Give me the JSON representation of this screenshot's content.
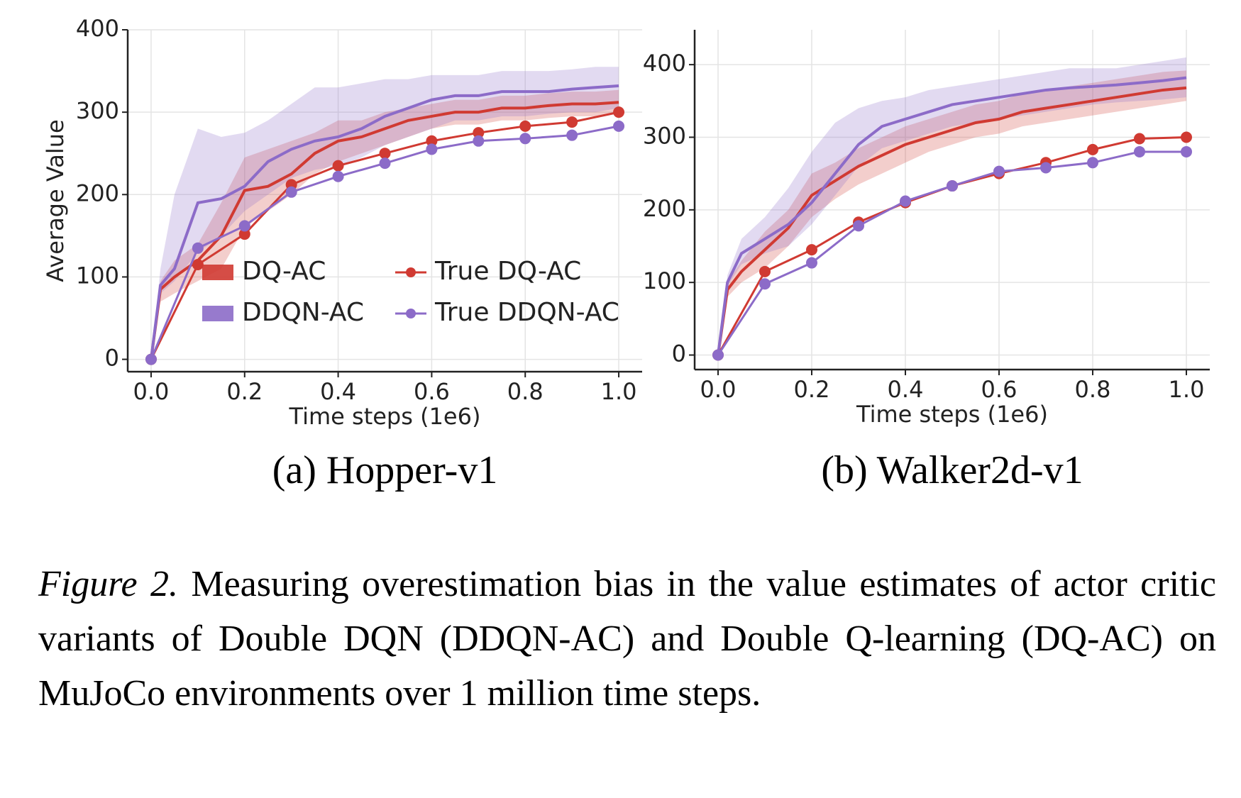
{
  "chart_data": [
    {
      "type": "line",
      "title": "(a) Hopper-v1",
      "xlabel": "Time steps (1e6)",
      "ylabel": "Average Value",
      "xlim": [
        -0.05,
        1.05
      ],
      "xticks": [
        {
          "value": 0,
          "label": "0.0"
        },
        0.2,
        0.4,
        0.6,
        0.8,
        {
          "value": 1,
          "label": "1.0"
        }
      ],
      "ylim": [
        -15,
        400
      ],
      "yticks": [
        0,
        100,
        200,
        300,
        400
      ],
      "grid": true,
      "legend": "lower right",
      "series": [
        {
          "name": "DQ-AC",
          "color": "#d03a32",
          "x": [
            0,
            0.02,
            0.05,
            0.1,
            0.15,
            0.2,
            0.25,
            0.3,
            0.35,
            0.4,
            0.45,
            0.5,
            0.55,
            0.6,
            0.65,
            0.7,
            0.75,
            0.8,
            0.85,
            0.9,
            0.95,
            1.0
          ],
          "values": [
            0,
            85,
            100,
            120,
            150,
            205,
            210,
            225,
            250,
            265,
            270,
            280,
            290,
            295,
            300,
            300,
            305,
            305,
            308,
            310,
            310,
            312
          ],
          "lower": [
            0,
            70,
            80,
            95,
            110,
            160,
            180,
            200,
            225,
            240,
            250,
            260,
            270,
            280,
            285,
            285,
            290,
            290,
            293,
            295,
            295,
            298
          ],
          "upper": [
            0,
            95,
            120,
            140,
            190,
            245,
            255,
            265,
            275,
            290,
            290,
            300,
            305,
            310,
            315,
            315,
            320,
            320,
            323,
            325,
            325,
            327
          ]
        },
        {
          "name": "DDQN-AC",
          "color": "#8c6bc8",
          "x": [
            0,
            0.02,
            0.05,
            0.1,
            0.15,
            0.2,
            0.25,
            0.3,
            0.35,
            0.4,
            0.45,
            0.5,
            0.55,
            0.6,
            0.65,
            0.7,
            0.75,
            0.8,
            0.85,
            0.9,
            0.95,
            1.0
          ],
          "values": [
            0,
            90,
            110,
            190,
            195,
            210,
            240,
            255,
            265,
            270,
            280,
            295,
            305,
            315,
            320,
            320,
            325,
            325,
            325,
            328,
            330,
            332
          ],
          "lower": [
            0,
            80,
            95,
            130,
            150,
            180,
            200,
            220,
            230,
            235,
            245,
            260,
            270,
            280,
            290,
            290,
            295,
            295,
            298,
            300,
            300,
            305
          ],
          "upper": [
            0,
            110,
            200,
            280,
            270,
            275,
            290,
            310,
            330,
            330,
            335,
            340,
            340,
            345,
            345,
            345,
            350,
            350,
            350,
            352,
            355,
            355
          ]
        },
        {
          "name": "True DQ-AC",
          "color": "#d03a32",
          "markers": true,
          "x": [
            0,
            0.1,
            0.2,
            0.3,
            0.4,
            0.5,
            0.6,
            0.7,
            0.8,
            0.9,
            1.0
          ],
          "values": [
            0,
            115,
            152,
            212,
            235,
            250,
            265,
            275,
            283,
            288,
            300
          ]
        },
        {
          "name": "True DDQN-AC",
          "color": "#8c6bc8",
          "markers": true,
          "x": [
            0,
            0.1,
            0.2,
            0.3,
            0.4,
            0.5,
            0.6,
            0.7,
            0.8,
            0.9,
            1.0
          ],
          "values": [
            0,
            135,
            162,
            203,
            222,
            238,
            255,
            265,
            268,
            272,
            283
          ]
        }
      ]
    },
    {
      "type": "line",
      "title": "(b) Walker2d-v1",
      "xlabel": "Time steps (1e6)",
      "xlim": [
        -0.05,
        1.05
      ],
      "xticks": [
        {
          "value": 0,
          "label": "0.0"
        },
        0.2,
        0.4,
        0.6,
        0.8,
        {
          "value": 1,
          "label": "1.0"
        }
      ],
      "ylim": [
        -20,
        448
      ],
      "yticks": [
        0,
        100,
        200,
        300,
        400
      ],
      "grid": true,
      "series": [
        {
          "color": "#d03a32",
          "x": [
            0,
            0.02,
            0.05,
            0.1,
            0.15,
            0.2,
            0.25,
            0.3,
            0.35,
            0.4,
            0.45,
            0.5,
            0.55,
            0.6,
            0.65,
            0.7,
            0.75,
            0.8,
            0.85,
            0.9,
            0.95,
            1.0
          ],
          "values": [
            0,
            90,
            115,
            145,
            175,
            220,
            240,
            260,
            275,
            290,
            300,
            310,
            320,
            325,
            335,
            340,
            345,
            350,
            355,
            360,
            365,
            368
          ],
          "lower": [
            0,
            80,
            100,
            120,
            150,
            190,
            215,
            235,
            250,
            265,
            280,
            290,
            300,
            305,
            315,
            320,
            325,
            330,
            335,
            340,
            345,
            350
          ],
          "upper": [
            0,
            100,
            130,
            170,
            200,
            250,
            265,
            285,
            300,
            315,
            325,
            335,
            345,
            350,
            360,
            365,
            370,
            375,
            380,
            385,
            390,
            392
          ]
        },
        {
          "color": "#8c6bc8",
          "x": [
            0,
            0.02,
            0.05,
            0.1,
            0.15,
            0.2,
            0.25,
            0.3,
            0.35,
            0.4,
            0.45,
            0.5,
            0.55,
            0.6,
            0.65,
            0.7,
            0.75,
            0.8,
            0.85,
            0.9,
            0.95,
            1.0
          ],
          "values": [
            0,
            100,
            140,
            160,
            180,
            210,
            250,
            290,
            315,
            325,
            335,
            345,
            350,
            355,
            360,
            365,
            368,
            370,
            372,
            375,
            378,
            382
          ],
          "lower": [
            0,
            95,
            125,
            140,
            150,
            180,
            220,
            260,
            285,
            295,
            305,
            315,
            320,
            325,
            330,
            335,
            340,
            345,
            348,
            350,
            352,
            355
          ],
          "upper": [
            0,
            110,
            160,
            190,
            230,
            280,
            320,
            340,
            350,
            355,
            365,
            370,
            375,
            380,
            385,
            390,
            395,
            395,
            395,
            400,
            405,
            410
          ]
        },
        {
          "color": "#d03a32",
          "markers": true,
          "x": [
            0,
            0.1,
            0.2,
            0.3,
            0.4,
            0.5,
            0.6,
            0.7,
            0.8,
            0.9,
            1.0
          ],
          "values": [
            0,
            115,
            145,
            183,
            210,
            233,
            250,
            265,
            283,
            298,
            300
          ]
        },
        {
          "color": "#8c6bc8",
          "markers": true,
          "x": [
            0,
            0.1,
            0.2,
            0.3,
            0.4,
            0.5,
            0.6,
            0.7,
            0.8,
            0.9,
            1.0
          ],
          "values": [
            0,
            98,
            127,
            178,
            212,
            233,
            253,
            258,
            265,
            280,
            280
          ]
        }
      ]
    }
  ],
  "caption": {
    "label": "Figure 2.",
    "text": "Measuring overestimation bias in the value estimates of actor critic variants of Double DQN (DDQN-AC) and Double Q-learning (DQ-AC) on MuJoCo environments over 1 million time steps."
  }
}
